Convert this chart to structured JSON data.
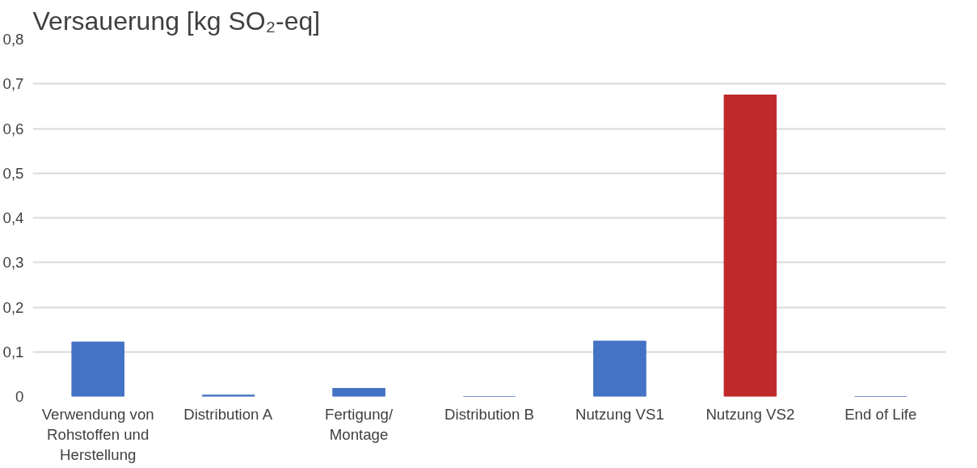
{
  "chart_data": {
    "type": "bar",
    "title": "Versauerung [kg SO₂-eq]",
    "categories": [
      "Verwendung von Rohstoffen und Herstellung",
      "Distribution A",
      "Fertigung/ Montage",
      "Distribution B",
      "Nutzung VS1",
      "Nutzung VS2",
      "End of Life"
    ],
    "values": [
      0.122,
      0.003,
      0.018,
      0,
      0.124,
      0.675,
      0
    ],
    "colors": [
      "#4472c4",
      "#4472c4",
      "#4472c4",
      "#4472c4",
      "#4472c4",
      "#c0292a",
      "#4472c4"
    ],
    "ylim": [
      0,
      0.8
    ],
    "yticks": [
      {
        "value": 0,
        "label": "0"
      },
      {
        "value": 0.1,
        "label": "0,1"
      },
      {
        "value": 0.2,
        "label": "0,2"
      },
      {
        "value": 0.3,
        "label": "0,3"
      },
      {
        "value": 0.4,
        "label": "0,4"
      },
      {
        "value": 0.5,
        "label": "0,5"
      },
      {
        "value": 0.6,
        "label": "0,6"
      },
      {
        "value": 0.7,
        "label": "0,7"
      },
      {
        "value": 0.8,
        "label": "0,8"
      }
    ],
    "grid": "y"
  }
}
